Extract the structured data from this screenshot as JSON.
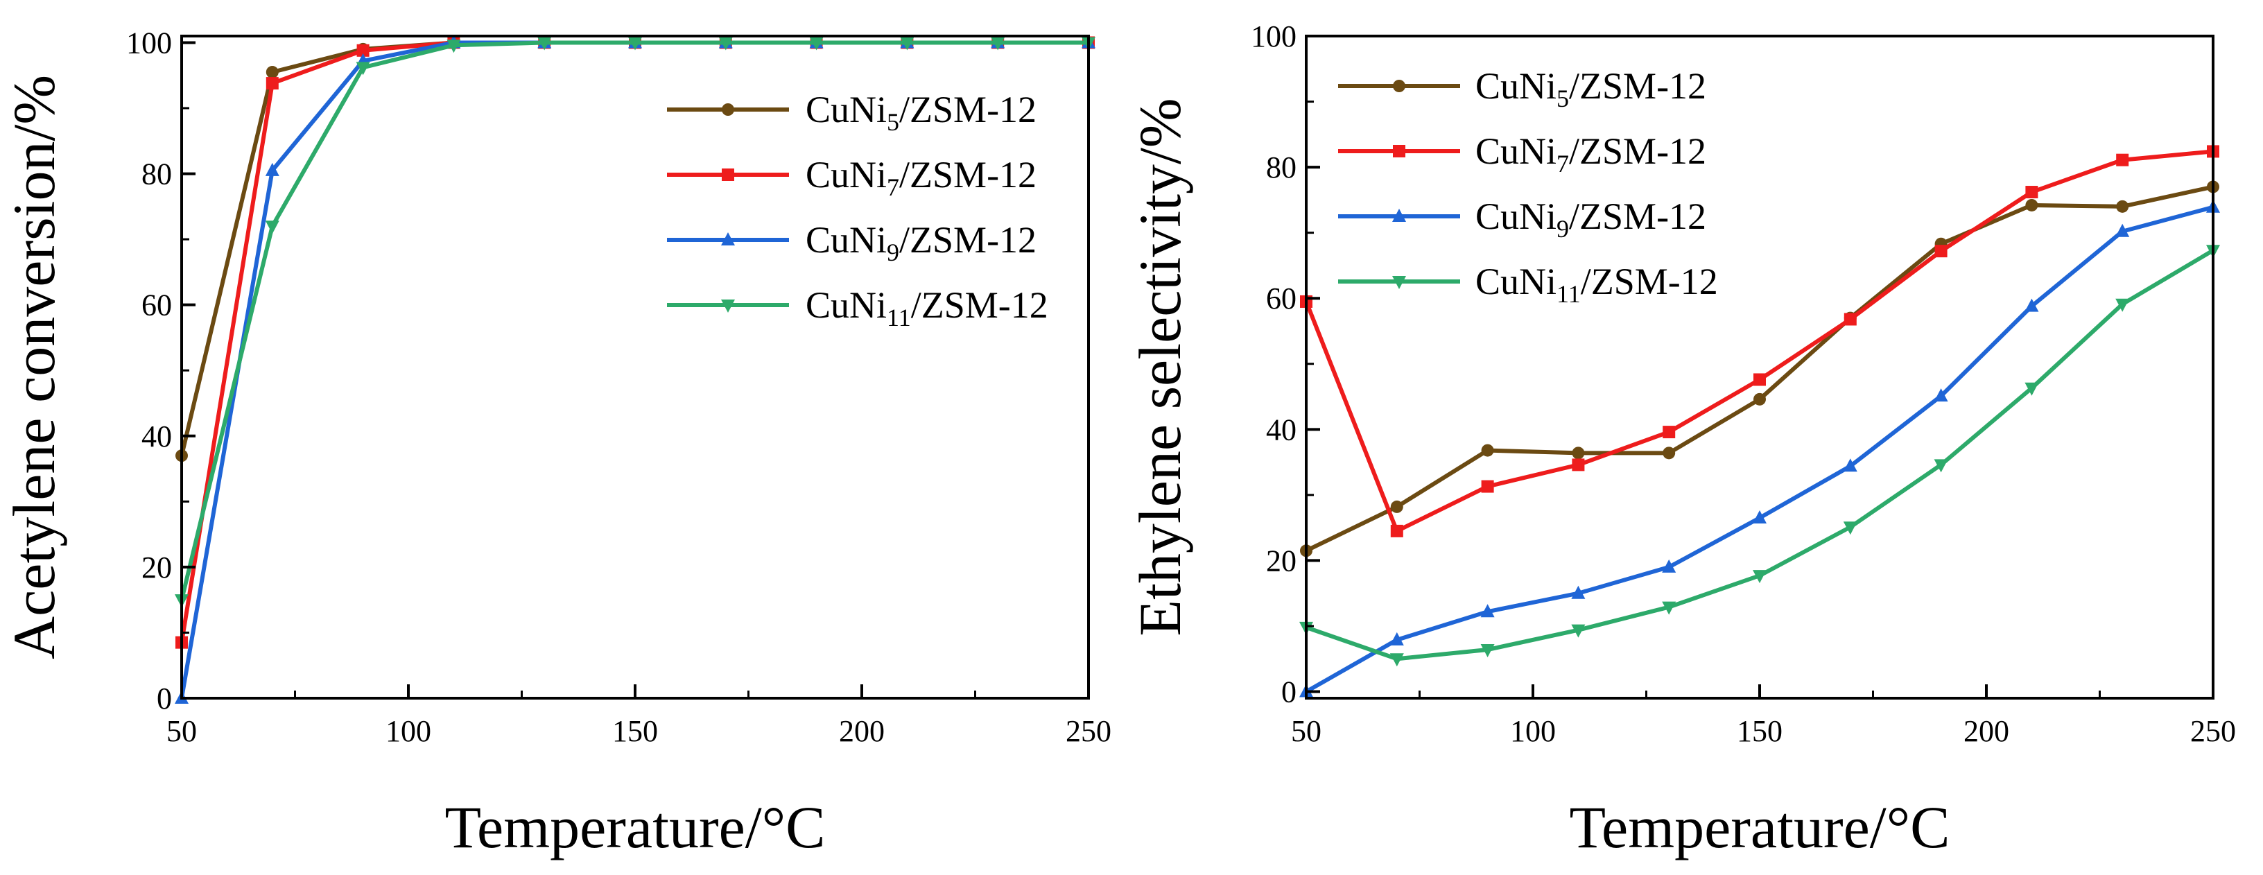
{
  "chart_data": [
    {
      "id": "left",
      "type": "line",
      "xlabel": "Temperature/°C",
      "ylabel": "Acetylene conversion/%",
      "xlim": [
        50,
        250
      ],
      "ylim": [
        0,
        101
      ],
      "xticks": [
        50,
        100,
        150,
        200,
        250
      ],
      "yticks": [
        0,
        20,
        40,
        60,
        80,
        100
      ],
      "x": [
        50,
        70,
        90,
        110,
        130,
        150,
        170,
        190,
        210,
        230,
        250
      ],
      "legend_position": "right",
      "series": [
        {
          "name": "CuNi5/ZSM-12",
          "base": "CuNi",
          "sub": "5",
          "suffix": "/ZSM-12",
          "color": "#6B4A12",
          "marker": "circle",
          "values": [
            37,
            95.5,
            99,
            100,
            100,
            100,
            100,
            100,
            100,
            100,
            100
          ]
        },
        {
          "name": "CuNi7/ZSM-12",
          "base": "CuNi",
          "sub": "7",
          "suffix": "/ZSM-12",
          "color": "#EE1C1C",
          "marker": "square",
          "values": [
            8.5,
            93.8,
            98.8,
            100,
            100,
            100,
            100,
            100,
            100,
            100,
            100
          ]
        },
        {
          "name": "CuNi9/ZSM-12",
          "base": "CuNi",
          "sub": "9",
          "suffix": "/ZSM-12",
          "color": "#1F65D6",
          "marker": "triangle-up",
          "values": [
            0,
            80.5,
            97.2,
            100,
            100,
            100,
            100,
            100,
            100,
            100,
            100
          ]
        },
        {
          "name": "CuNi11/ZSM-12",
          "base": "CuNi",
          "sub": "11",
          "suffix": "/ZSM-12",
          "color": "#2DAA6A",
          "marker": "triangle-down",
          "values": [
            15,
            72,
            96.2,
            99.6,
            100,
            100,
            100,
            100,
            100,
            100,
            100
          ]
        }
      ]
    },
    {
      "id": "right",
      "type": "line",
      "xlabel": "Temperature/°C",
      "ylabel": "Ethylene selectivity/%",
      "xlim": [
        50,
        250
      ],
      "ylim": [
        -1,
        100
      ],
      "xticks": [
        50,
        100,
        150,
        200,
        250
      ],
      "yticks": [
        0,
        20,
        40,
        60,
        80,
        100
      ],
      "x": [
        50,
        70,
        90,
        110,
        130,
        150,
        170,
        190,
        210,
        230,
        250
      ],
      "legend_position": "top-left",
      "series": [
        {
          "name": "CuNi5/ZSM-12",
          "base": "CuNi",
          "sub": "5",
          "suffix": "/ZSM-12",
          "color": "#6B4A12",
          "marker": "circle",
          "values": [
            21.5,
            28.2,
            36.8,
            36.4,
            36.4,
            44.6,
            57,
            68.3,
            74.2,
            74,
            77
          ]
        },
        {
          "name": "CuNi7/ZSM-12",
          "base": "CuNi",
          "sub": "7",
          "suffix": "/ZSM-12",
          "color": "#EE1C1C",
          "marker": "square",
          "values": [
            59.5,
            24.5,
            31.3,
            34.6,
            39.6,
            47.6,
            56.8,
            67.2,
            76.2,
            81.1,
            82.4
          ]
        },
        {
          "name": "CuNi9/ZSM-12",
          "base": "CuNi",
          "sub": "9",
          "suffix": "/ZSM-12",
          "color": "#1F65D6",
          "marker": "triangle-up",
          "values": [
            0,
            7.9,
            12.2,
            15,
            19,
            26.5,
            34.4,
            45.1,
            58.8,
            70.2,
            73.9
          ]
        },
        {
          "name": "CuNi11/ZSM-12",
          "base": "CuNi",
          "sub": "11",
          "suffix": "/ZSM-12",
          "color": "#2DAA6A",
          "marker": "triangle-down",
          "values": [
            9.8,
            5,
            6.4,
            9.4,
            12.9,
            17.7,
            25.1,
            34.6,
            46.3,
            59.1,
            67.3
          ]
        }
      ]
    }
  ]
}
